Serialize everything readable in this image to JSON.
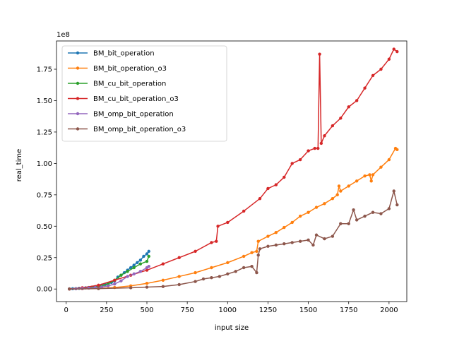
{
  "chart_data": {
    "type": "line",
    "xlabel": "input size",
    "ylabel": "real_time",
    "offset_label": "1e8",
    "xlim": [
      -60,
      2110
    ],
    "ylim": [
      -0.1,
      1.975
    ],
    "xticks": [
      0,
      250,
      500,
      750,
      1000,
      1250,
      1500,
      1750,
      2000
    ],
    "xtick_labels": [
      "0",
      "250",
      "500",
      "750",
      "1000",
      "1250",
      "1500",
      "1750",
      "2000"
    ],
    "yticks": [
      0.0,
      0.25,
      0.5,
      0.75,
      1.0,
      1.25,
      1.5,
      1.75
    ],
    "ytick_labels": [
      "0.00",
      "0.25",
      "0.50",
      "0.75",
      "1.00",
      "1.25",
      "1.50",
      "1.75"
    ],
    "legend_position": "upper-left",
    "grid": false,
    "series": [
      {
        "name": "BM_bit_operation",
        "color": "#1f77b4",
        "x": [
          20,
          40,
          60,
          80,
          100,
          120,
          140,
          160,
          180,
          200,
          220,
          240,
          260,
          280,
          300,
          320,
          340,
          360,
          380,
          400,
          420,
          440,
          460,
          480,
          500,
          512
        ],
        "y": [
          0.001,
          0.002,
          0.003,
          0.005,
          0.007,
          0.009,
          0.012,
          0.015,
          0.019,
          0.024,
          0.03,
          0.036,
          0.044,
          0.052,
          0.065,
          0.095,
          0.11,
          0.13,
          0.15,
          0.17,
          0.19,
          0.21,
          0.23,
          0.26,
          0.28,
          0.3
        ]
      },
      {
        "name": "BM_bit_operation_o3",
        "color": "#ff7f0e",
        "x": [
          20,
          100,
          200,
          300,
          400,
          500,
          600,
          700,
          800,
          900,
          1000,
          1100,
          1150,
          1180,
          1190,
          1250,
          1300,
          1350,
          1400,
          1450,
          1500,
          1550,
          1600,
          1650,
          1680,
          1690,
          1700,
          1750,
          1800,
          1850,
          1880,
          1890,
          1900,
          1950,
          2000,
          2040,
          2050
        ],
        "y": [
          0.0,
          0.002,
          0.005,
          0.012,
          0.025,
          0.045,
          0.07,
          0.1,
          0.13,
          0.17,
          0.21,
          0.26,
          0.29,
          0.3,
          0.38,
          0.42,
          0.45,
          0.49,
          0.53,
          0.58,
          0.61,
          0.65,
          0.68,
          0.72,
          0.75,
          0.82,
          0.78,
          0.82,
          0.86,
          0.9,
          0.91,
          0.86,
          0.91,
          0.97,
          1.03,
          1.12,
          1.11
        ]
      },
      {
        "name": "BM_cu_bit_operation",
        "color": "#2ca02c",
        "x": [
          20,
          60,
          100,
          140,
          180,
          220,
          260,
          300,
          340,
          380,
          420,
          460,
          500,
          512
        ],
        "y": [
          0.001,
          0.003,
          0.006,
          0.01,
          0.016,
          0.025,
          0.04,
          0.07,
          0.11,
          0.14,
          0.17,
          0.2,
          0.22,
          0.26
        ]
      },
      {
        "name": "BM_cu_bit_operation_o3",
        "color": "#d62728",
        "x": [
          20,
          100,
          200,
          300,
          400,
          500,
          600,
          700,
          800,
          900,
          930,
          940,
          1000,
          1100,
          1200,
          1250,
          1300,
          1350,
          1400,
          1450,
          1500,
          1540,
          1560,
          1570,
          1580,
          1600,
          1650,
          1700,
          1750,
          1800,
          1850,
          1900,
          1950,
          2000,
          2030,
          2050
        ],
        "y": [
          0.0,
          0.01,
          0.03,
          0.07,
          0.11,
          0.15,
          0.2,
          0.25,
          0.3,
          0.37,
          0.38,
          0.5,
          0.53,
          0.62,
          0.72,
          0.8,
          0.83,
          0.89,
          1.0,
          1.03,
          1.1,
          1.12,
          1.12,
          1.87,
          1.16,
          1.22,
          1.3,
          1.36,
          1.45,
          1.5,
          1.6,
          1.7,
          1.75,
          1.83,
          1.91,
          1.89
        ]
      },
      {
        "name": "BM_omp_bit_operation",
        "color": "#9467bd",
        "x": [
          20,
          60,
          100,
          140,
          180,
          220,
          260,
          300,
          340,
          380,
          420,
          460,
          500,
          512
        ],
        "y": [
          0.001,
          0.002,
          0.004,
          0.007,
          0.011,
          0.016,
          0.025,
          0.04,
          0.065,
          0.1,
          0.12,
          0.14,
          0.17,
          0.18
        ]
      },
      {
        "name": "BM_omp_bit_operation_o3",
        "color": "#8c564b",
        "x": [
          20,
          200,
          400,
          500,
          600,
          700,
          800,
          850,
          900,
          950,
          1000,
          1050,
          1100,
          1150,
          1180,
          1190,
          1200,
          1250,
          1300,
          1350,
          1400,
          1450,
          1500,
          1530,
          1550,
          1600,
          1650,
          1700,
          1750,
          1780,
          1800,
          1850,
          1900,
          1950,
          2000,
          2030,
          2050
        ],
        "y": [
          0.0,
          0.003,
          0.01,
          0.015,
          0.02,
          0.035,
          0.06,
          0.08,
          0.09,
          0.1,
          0.12,
          0.14,
          0.17,
          0.18,
          0.13,
          0.27,
          0.32,
          0.34,
          0.35,
          0.36,
          0.37,
          0.38,
          0.39,
          0.35,
          0.43,
          0.4,
          0.42,
          0.52,
          0.52,
          0.63,
          0.55,
          0.58,
          0.61,
          0.6,
          0.64,
          0.78,
          0.67
        ]
      }
    ]
  }
}
